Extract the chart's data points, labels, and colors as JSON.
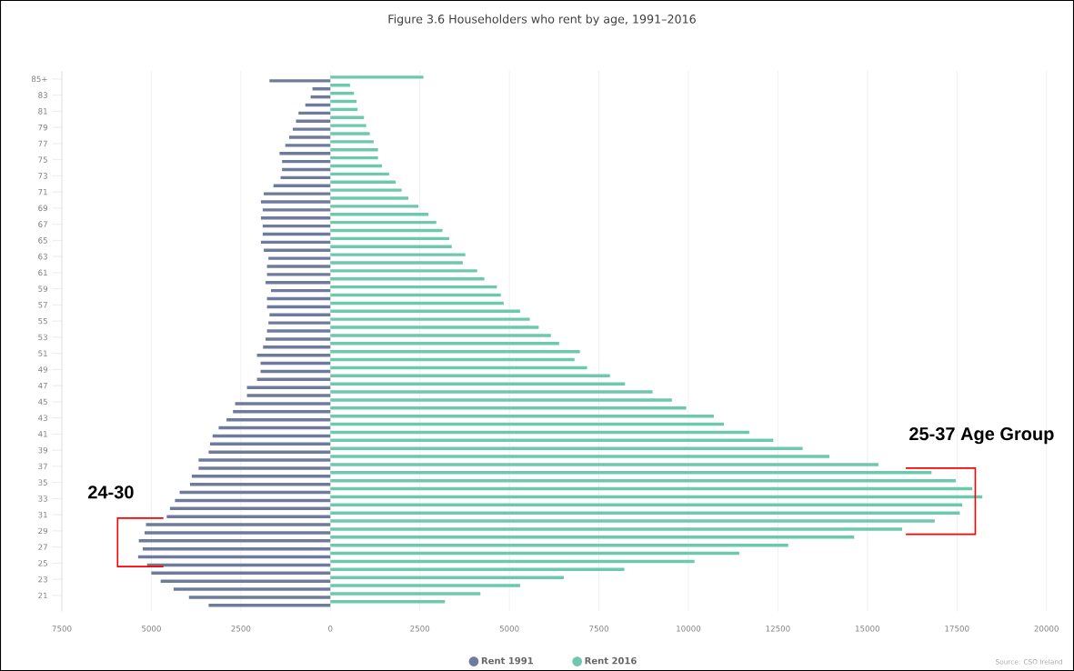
{
  "chart_data": {
    "type": "bar",
    "orientation": "horizontal",
    "title": "Figure 3.6 Householders who rent by age, 1991–2016",
    "categories": [
      "85+",
      null,
      "83",
      null,
      "81",
      null,
      "79",
      null,
      "77",
      null,
      "75",
      null,
      "73",
      null,
      "71",
      null,
      "69",
      null,
      "67",
      null,
      "65",
      null,
      "63",
      null,
      "61",
      null,
      "59",
      null,
      "57",
      null,
      "55",
      null,
      "53",
      null,
      "51",
      null,
      "49",
      null,
      "47",
      null,
      "45",
      null,
      "43",
      null,
      "41",
      null,
      "39",
      null,
      "37",
      null,
      "35",
      null,
      "33",
      null,
      "31",
      null,
      "29",
      null,
      "27",
      null,
      "25",
      null,
      "23",
      null,
      "21",
      null
    ],
    "series": [
      {
        "name": "Rent 1991",
        "color": "#6f7b9c",
        "values": [
          -1700,
          -500,
          -550,
          -700,
          -890,
          -960,
          -1050,
          -1150,
          -1260,
          -1420,
          -1350,
          -1350,
          -1390,
          -1590,
          -1860,
          -1940,
          -1890,
          -1940,
          -1890,
          -1890,
          -1940,
          -1860,
          -1730,
          -1770,
          -1770,
          -1810,
          -1660,
          -1770,
          -1770,
          -1700,
          -1730,
          -1770,
          -1810,
          -1880,
          -2050,
          -1950,
          -1950,
          -2050,
          -2330,
          -2330,
          -2660,
          -2720,
          -2900,
          -3120,
          -3290,
          -3360,
          -3400,
          -3680,
          -3680,
          -3870,
          -3920,
          -4210,
          -4340,
          -4480,
          -4570,
          -5150,
          -5190,
          -5350,
          -5240,
          -5370,
          -5120,
          -5000,
          -4740,
          -4380,
          -3950,
          -3400
        ]
      },
      {
        "name": "Rent 2016",
        "color": "#6cc9ae",
        "values": [
          2600,
          550,
          660,
          730,
          760,
          940,
          1000,
          1100,
          1210,
          1330,
          1330,
          1440,
          1640,
          1820,
          1990,
          2180,
          2460,
          2740,
          2960,
          3130,
          3320,
          3390,
          3770,
          3700,
          4100,
          4300,
          4650,
          4760,
          4840,
          5300,
          5570,
          5820,
          6160,
          6390,
          6970,
          6820,
          7170,
          7810,
          8230,
          9000,
          9540,
          9940,
          10710,
          10990,
          11700,
          12370,
          13190,
          13940,
          15310,
          16790,
          17470,
          17930,
          18210,
          17650,
          17580,
          16880,
          15970,
          14630,
          12790,
          11420,
          10170,
          8210,
          6520,
          5300,
          4190,
          3200
        ]
      }
    ],
    "xlim": [
      -7500,
      20000
    ],
    "xticks": [
      {
        "value": -7500,
        "label": "7500"
      },
      {
        "value": -5000,
        "label": "5000"
      },
      {
        "value": -2500,
        "label": "2500"
      },
      0,
      2500,
      5000,
      7500,
      10000,
      12500,
      15000,
      17500,
      20000
    ],
    "grid": "x",
    "legend": "bottom",
    "annotations": [
      "24-30",
      "25-37 Age Group",
      "Source: CSO Ireland"
    ]
  }
}
